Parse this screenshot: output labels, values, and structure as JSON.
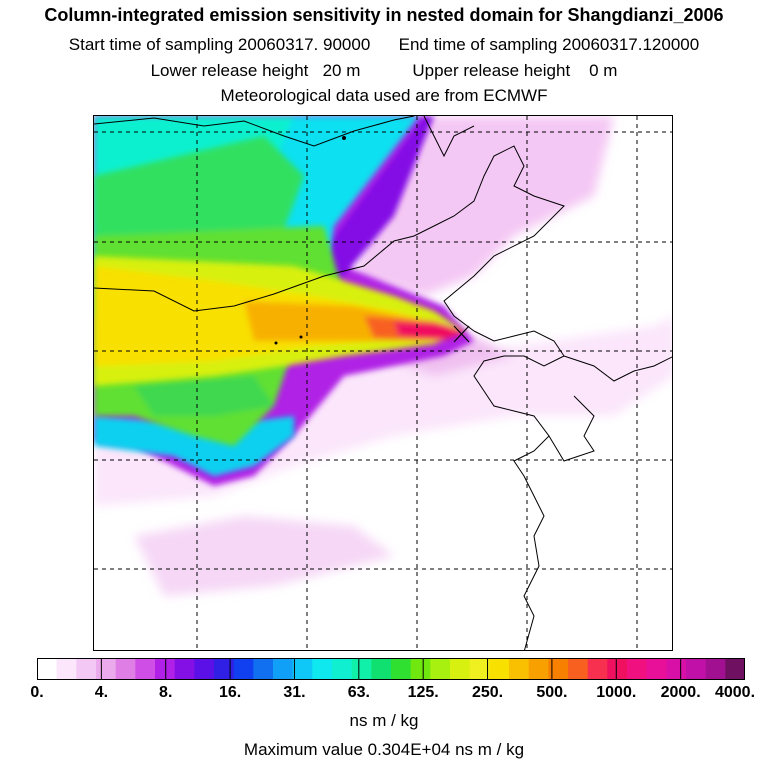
{
  "header": {
    "title": "Column-integrated emission sensitivity in nested domain for Shangdianzi_2006",
    "start_label": "Start time of sampling",
    "start_value": "20060317. 90000",
    "end_label": "End time of sampling",
    "end_value": "20060317.120000",
    "lower_label": "Lower release height",
    "lower_value": "20 m",
    "upper_label": "Upper release height",
    "upper_value": "0 m",
    "met_line": "Meteorological data used are from ECMWF"
  },
  "legend": {
    "tick_labels": [
      "0.",
      "4.",
      "8.",
      "16.",
      "31.",
      "63.",
      "125.",
      "250.",
      "500.",
      "1000.",
      "2000.",
      "4000."
    ],
    "units": "ns m / kg",
    "max_value_line": "Maximum value  0.304E+04 ns m / kg",
    "colors": [
      "#ffffff",
      "#fbe6fb",
      "#f4c8f4",
      "#ebaaeb",
      "#df7fe6",
      "#cf4fe6",
      "#b020e6",
      "#8410e6",
      "#5a10e6",
      "#3020e6",
      "#1040f0",
      "#1070f0",
      "#10a0f8",
      "#10c8f8",
      "#10e8f0",
      "#10f0d0",
      "#10f0a8",
      "#10e070",
      "#30e030",
      "#70e810",
      "#a8f010",
      "#d8f010",
      "#f0f020",
      "#f8e000",
      "#f8c000",
      "#f8a000",
      "#f88000",
      "#f86020",
      "#f83050",
      "#f01060",
      "#f01080",
      "#e81098",
      "#d810a8",
      "#c010a8",
      "#a01090",
      "#701060"
    ]
  },
  "map": {
    "station": "Shangdianzi"
  }
}
